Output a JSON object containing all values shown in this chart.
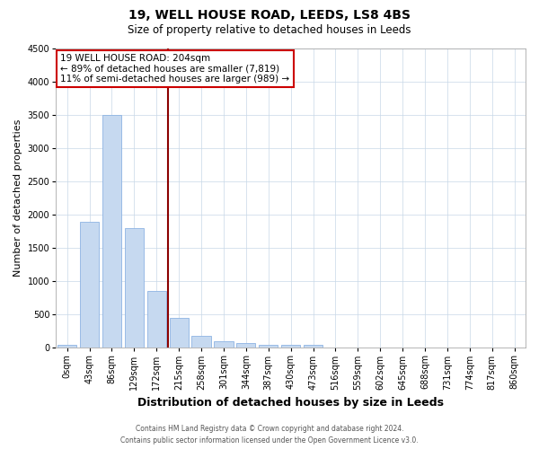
{
  "title1": "19, WELL HOUSE ROAD, LEEDS, LS8 4BS",
  "title2": "Size of property relative to detached houses in Leeds",
  "xlabel": "Distribution of detached houses by size in Leeds",
  "ylabel": "Number of detached properties",
  "bar_labels": [
    "0sqm",
    "43sqm",
    "86sqm",
    "129sqm",
    "172sqm",
    "215sqm",
    "258sqm",
    "301sqm",
    "344sqm",
    "387sqm",
    "430sqm",
    "473sqm",
    "516sqm",
    "559sqm",
    "602sqm",
    "645sqm",
    "688sqm",
    "731sqm",
    "774sqm",
    "817sqm",
    "860sqm"
  ],
  "bar_values": [
    50,
    1900,
    3500,
    1800,
    850,
    450,
    175,
    105,
    75,
    50,
    40,
    40,
    0,
    0,
    0,
    0,
    0,
    0,
    0,
    0,
    0
  ],
  "bar_color": "#c6d9f0",
  "bar_edge_color": "#8eb4e3",
  "vline_x": 4.5,
  "vline_color": "#8b0000",
  "annotation_title": "19 WELL HOUSE ROAD: 204sqm",
  "annotation_line1": "← 89% of detached houses are smaller (7,819)",
  "annotation_line2": "11% of semi-detached houses are larger (989) →",
  "annotation_box_color": "#ffffff",
  "annotation_box_edge": "#cc0000",
  "ylim": [
    0,
    4500
  ],
  "yticks": [
    0,
    500,
    1000,
    1500,
    2000,
    2500,
    3000,
    3500,
    4000,
    4500
  ],
  "footer1": "Contains HM Land Registry data © Crown copyright and database right 2024.",
  "footer2": "Contains public sector information licensed under the Open Government Licence v3.0.",
  "background_color": "#ffffff",
  "grid_color": "#c8d8e8",
  "title1_fontsize": 10,
  "title2_fontsize": 8.5,
  "xlabel_fontsize": 9,
  "ylabel_fontsize": 8,
  "tick_fontsize": 7,
  "ann_fontsize": 7.5,
  "footer_fontsize": 5.5
}
